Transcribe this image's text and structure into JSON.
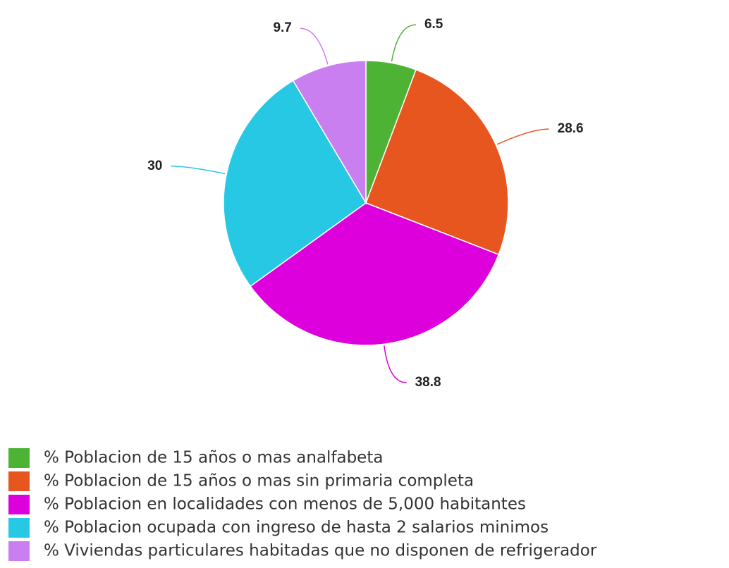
{
  "chart_data": {
    "type": "pie",
    "categories": [
      "% Poblacion de 15 años o mas analfabeta",
      "% Poblacion de 15 años o mas sin primaria completa",
      "% Poblacion en localidades con menos de 5,000 habitantes",
      "% Poblacion ocupada con ingreso de hasta 2 salarios minimos",
      "% Viviendas particulares habitadas que no disponen de refrigerador"
    ],
    "values": [
      6.5,
      28.6,
      38.8,
      30,
      9.7
    ],
    "colors": [
      "#4db335",
      "#e8561f",
      "#dd00dd",
      "#27c8e3",
      "#c97ff0"
    ]
  }
}
